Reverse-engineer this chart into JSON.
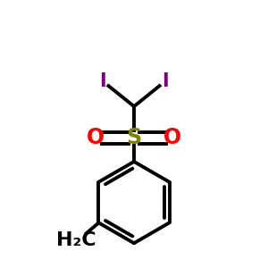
{
  "bg_color": "#ffffff",
  "bond_color": "#000000",
  "S_color": "#808000",
  "O_color": "#ff0000",
  "I_color": "#7f007f",
  "line_width": 2.8,
  "S_label": "S",
  "O_left_label": "O",
  "O_right_label": "O",
  "I_left_label": "I",
  "I_right_label": "I",
  "CH3_label": "H₂C",
  "S_fontsize": 17,
  "O_fontsize": 17,
  "I_fontsize": 15,
  "CH3_fontsize": 16
}
